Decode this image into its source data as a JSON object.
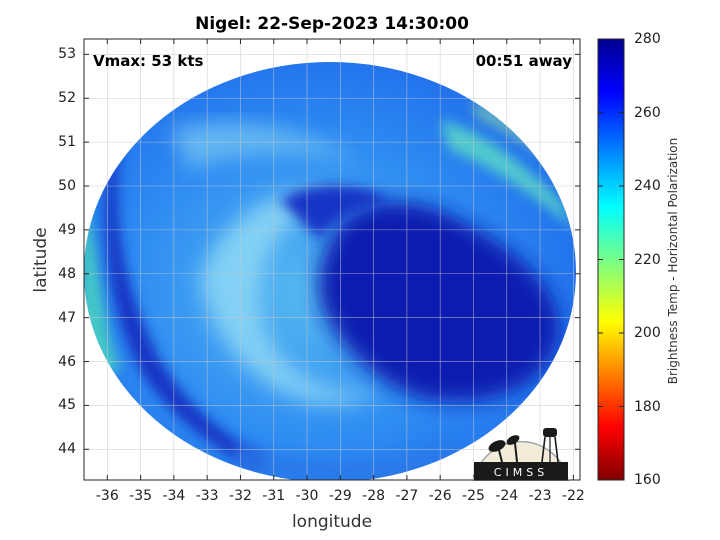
{
  "title": "Nigel: 22-Sep-2023 14:30:00",
  "vmax_label": "Vmax: 53 kts",
  "time_label": "00:51 away",
  "x_axis": {
    "label": "longitude",
    "ticks": [
      -36,
      -35,
      -34,
      -33,
      -32,
      -31,
      -30,
      -29,
      -28,
      -27,
      -26,
      -25,
      -24,
      -23,
      -22
    ],
    "range": [
      -36.7,
      -21.8
    ]
  },
  "y_axis": {
    "label": "latitude",
    "ticks": [
      44,
      45,
      46,
      47,
      48,
      49,
      50,
      51,
      52,
      53
    ],
    "range": [
      43.3,
      53.35
    ]
  },
  "colorbar": {
    "label": "Brightness Temp - Horizontal Polarization",
    "ticks": [
      160,
      180,
      200,
      220,
      240,
      260,
      280
    ],
    "range": [
      160,
      280
    ],
    "colormap": "jet"
  },
  "grid": true,
  "logo_text": "CIMSS",
  "colors": {
    "core": "#0a1fb0",
    "field": "#2f7df0",
    "cold_band": "#1838c8",
    "warm_edge": "#3fd6d6"
  }
}
